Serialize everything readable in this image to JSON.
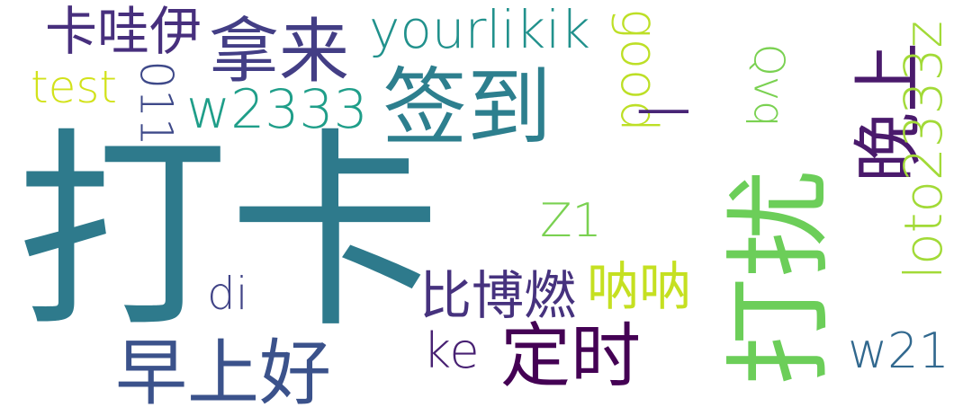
{
  "word_cloud": {
    "words": [
      {
        "text": "打卡",
        "color": "#2e7a8c"
      },
      {
        "text": "打扰",
        "color": "#6cce59"
      },
      {
        "text": "签到",
        "color": "#2d7f8e"
      },
      {
        "text": "拿来",
        "color": "#433e85"
      },
      {
        "text": "早上好",
        "color": "#3b528b"
      },
      {
        "text": "定时",
        "color": "#440154"
      },
      {
        "text": "晚上",
        "color": "#4a1a6c"
      },
      {
        "text": "卡哇伊",
        "color": "#472f7d"
      },
      {
        "text": "yourlikik",
        "color": "#21918c"
      },
      {
        "text": "w2333",
        "color": "#1f9e89"
      },
      {
        "text": "test",
        "color": "#d2e21b"
      },
      {
        "text": "011",
        "color": "#3e4989"
      },
      {
        "text": "good",
        "color": "#bddf26"
      },
      {
        "text": "I",
        "color": "#482576"
      },
      {
        "text": "Qvq",
        "color": "#7ad151"
      },
      {
        "text": "loto2333z",
        "color": "#a2da37"
      },
      {
        "text": "Z1",
        "color": "#7ad151"
      },
      {
        "text": "di",
        "color": "#414487"
      },
      {
        "text": "比博燃",
        "color": "#46327e"
      },
      {
        "text": "呐呐",
        "color": "#c5e021"
      },
      {
        "text": "ke",
        "color": "#482173"
      },
      {
        "text": "w21",
        "color": "#31688e"
      }
    ]
  }
}
